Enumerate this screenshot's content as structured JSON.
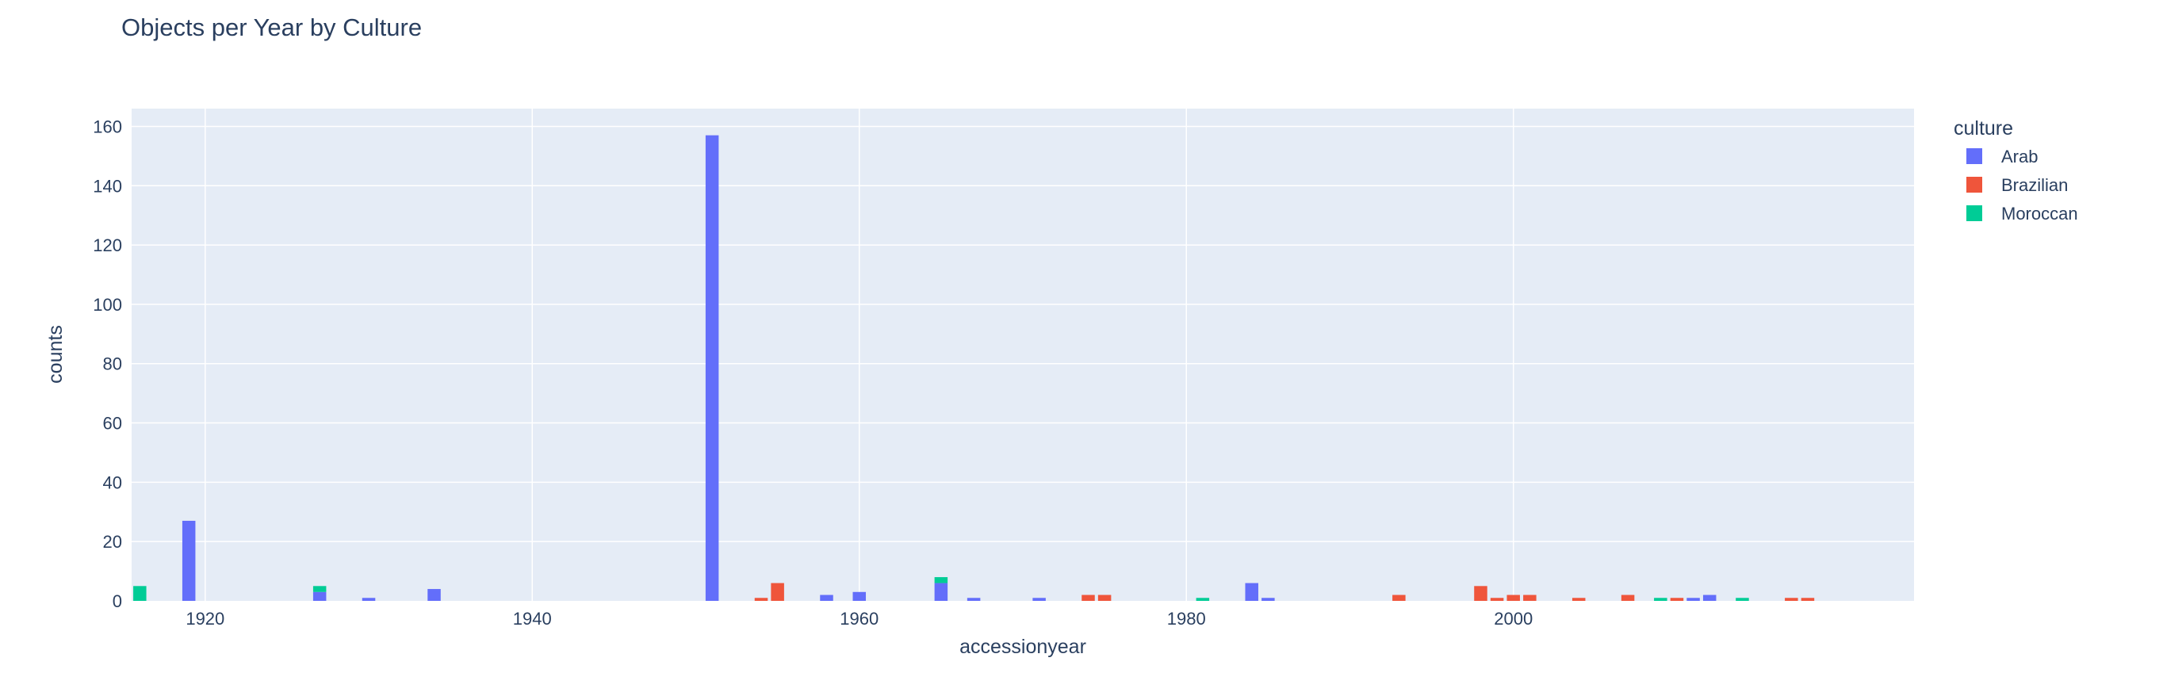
{
  "chart_data": {
    "type": "bar",
    "barmode": "stack",
    "title": "Objects per Year by Culture",
    "xlabel": "accessionyear",
    "ylabel": "counts",
    "xlim": [
      1915.5,
      2024.5
    ],
    "ylim": [
      0,
      166
    ],
    "x_ticks": [
      1920,
      1940,
      1960,
      1980,
      2000
    ],
    "y_ticks": [
      0,
      20,
      40,
      60,
      80,
      100,
      120,
      140,
      160
    ],
    "grid": true,
    "plot_background": "#E5ECF6",
    "legend": {
      "title": "culture",
      "position": "top-right"
    },
    "series": [
      {
        "name": "Arab",
        "color": "#636EFA",
        "x": [
          1919,
          1927,
          1930,
          1934,
          1951,
          1958,
          1960,
          1965,
          1967,
          1971,
          1984,
          1985,
          2011,
          2012
        ],
        "values": [
          27,
          3,
          1,
          4,
          157,
          2,
          3,
          6,
          1,
          1,
          6,
          1,
          1,
          2
        ]
      },
      {
        "name": "Brazilian",
        "color": "#EF553B",
        "x": [
          1954,
          1955,
          1974,
          1975,
          1993,
          1998,
          1999,
          2000,
          2001,
          2004,
          2007,
          2010,
          2017,
          2018
        ],
        "values": [
          1,
          6,
          2,
          2,
          2,
          5,
          1,
          2,
          2,
          1,
          2,
          1,
          1,
          1
        ]
      },
      {
        "name": "Moroccan",
        "color": "#00CC96",
        "x": [
          1916,
          1927,
          1965,
          1981,
          2009,
          2014
        ],
        "values": [
          5,
          2,
          2,
          1,
          1,
          1
        ]
      }
    ]
  }
}
